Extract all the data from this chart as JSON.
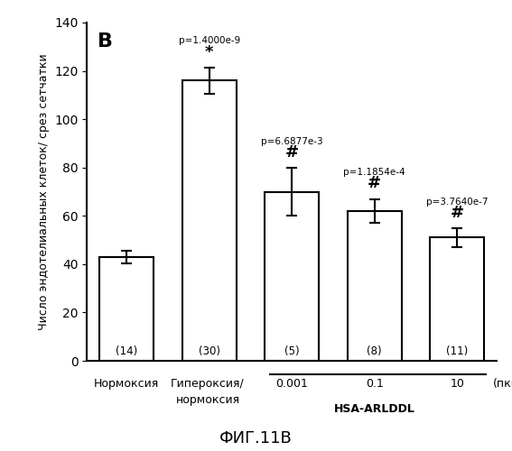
{
  "bars": [
    {
      "label": "Нормоксия",
      "value": 43,
      "error": 2.5,
      "n": 14,
      "p_text": "",
      "sig_symbol": ""
    },
    {
      "label": "Гипероксия/\nнормоксия",
      "value": 116,
      "error": 5.5,
      "n": 30,
      "p_text": "p=1.4000e-9",
      "sig_symbol": "*"
    },
    {
      "label": "0.001",
      "value": 70,
      "error": 10,
      "n": 5,
      "p_text": "p=6.6877e-3",
      "sig_symbol": "#"
    },
    {
      "label": "0.1",
      "value": 62,
      "error": 5,
      "n": 8,
      "p_text": "p=1.1854e-4",
      "sig_symbol": "#"
    },
    {
      "label": "10",
      "value": 51,
      "error": 4,
      "n": 11,
      "p_text": "p=3.7640e-7",
      "sig_symbol": "#"
    }
  ],
  "x_positions": [
    0,
    1.15,
    2.3,
    3.45,
    4.6
  ],
  "bar_width": 0.75,
  "ylabel": "Число эндотелиальных клеток/ срез сетчатки",
  "xlabel_hsa": "HSA-ARLDDL",
  "xlabel_unit": "(пкг)",
  "panel_label": "B",
  "figure_title": "ФИГ.11B",
  "ylim": [
    0,
    140
  ],
  "yticks": [
    0,
    20,
    40,
    60,
    80,
    100,
    120,
    140
  ],
  "bar_color": "#ffffff",
  "bar_edgecolor": "#000000",
  "background_color": "#ffffff"
}
